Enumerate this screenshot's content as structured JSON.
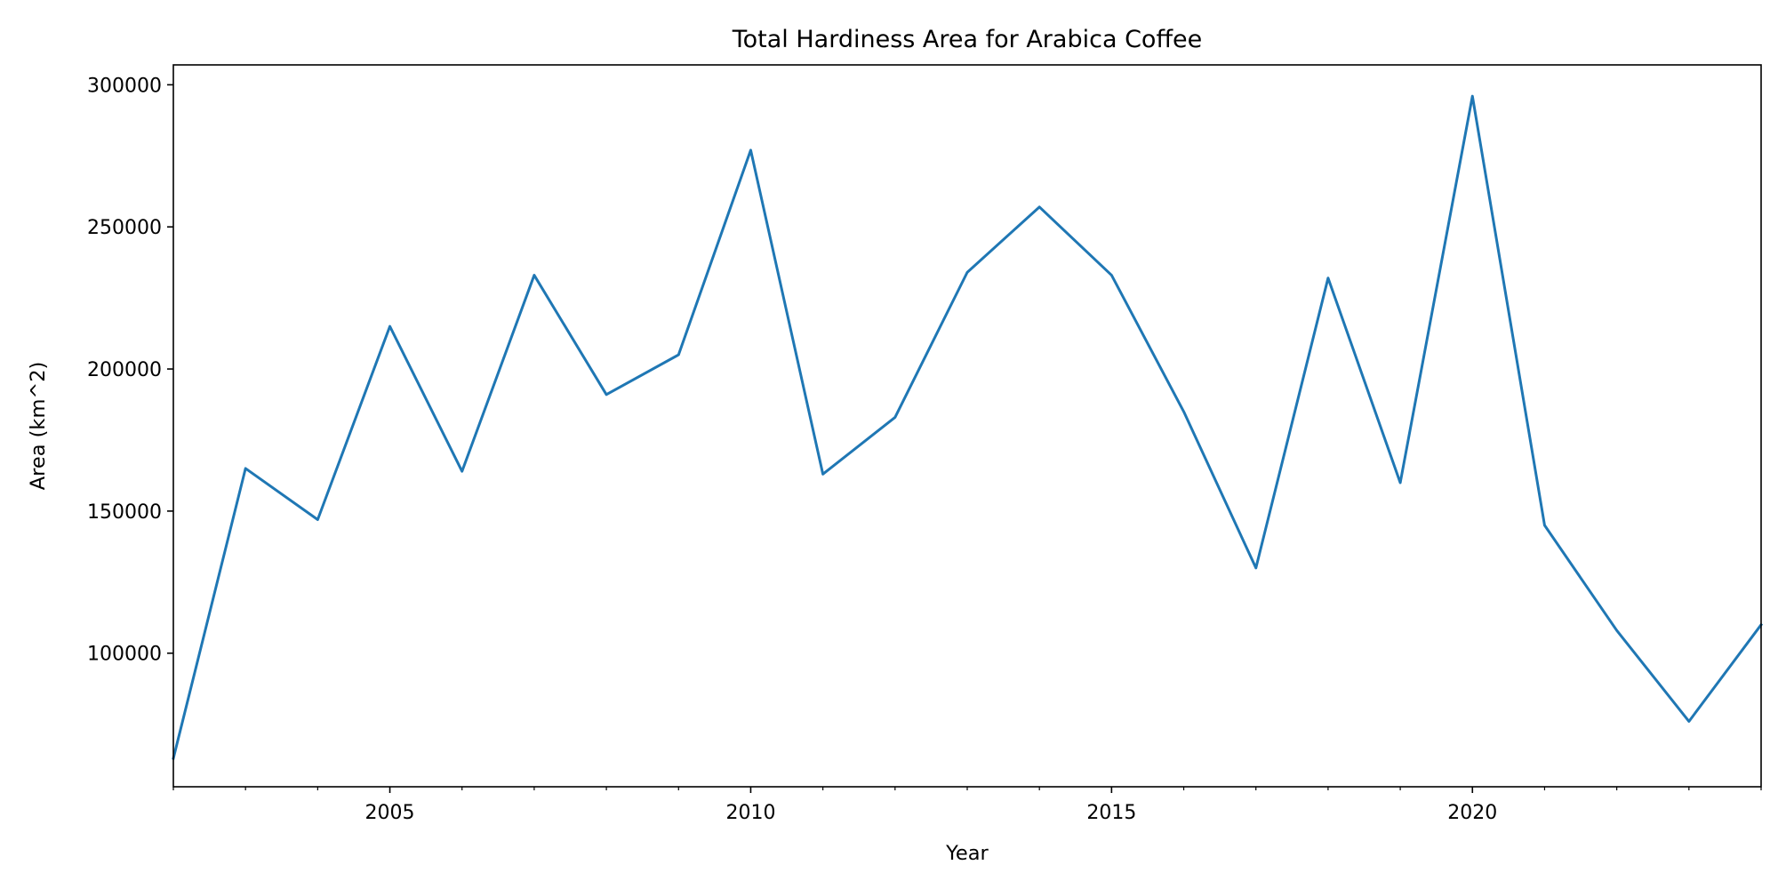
{
  "chart_data": {
    "type": "line",
    "title": "Total Hardiness Area for Arabica Coffee",
    "xlabel": "Year",
    "ylabel": "Area (km^2)",
    "xlim": [
      2002,
      2024
    ],
    "ylim": [
      53000,
      307000
    ],
    "x_ticks": [
      2005,
      2010,
      2015,
      2020
    ],
    "x_minor_ticks": [
      2002,
      2003,
      2004,
      2006,
      2007,
      2008,
      2009,
      2011,
      2012,
      2013,
      2014,
      2016,
      2017,
      2018,
      2019,
      2021,
      2022,
      2023,
      2024
    ],
    "y_ticks": [
      100000,
      150000,
      200000,
      250000,
      300000
    ],
    "grid": false,
    "legend": "none",
    "line_color": "#1f77b4",
    "series": [
      {
        "x": [
          2002,
          2003,
          2004,
          2005,
          2006,
          2007,
          2008,
          2009,
          2010,
          2011,
          2012,
          2013,
          2014,
          2015,
          2016,
          2017,
          2018,
          2019,
          2020,
          2021,
          2022,
          2023,
          2024
        ],
        "values": [
          63000,
          165000,
          147000,
          215000,
          164000,
          233000,
          191000,
          205000,
          277000,
          163000,
          183000,
          234000,
          257000,
          233000,
          185000,
          130000,
          232000,
          160000,
          296000,
          145000,
          108000,
          76000,
          110000
        ]
      }
    ]
  }
}
